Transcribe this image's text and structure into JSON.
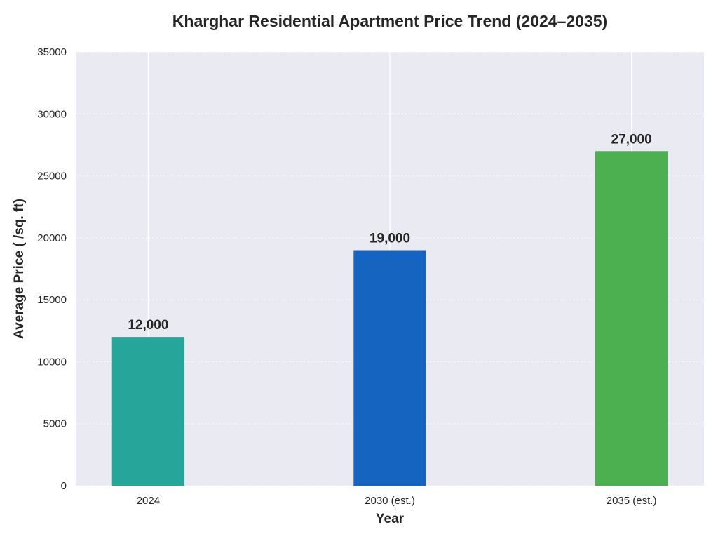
{
  "chart_data": {
    "type": "bar",
    "title": "Kharghar Residential Apartment Price Trend (2024–2035)",
    "xlabel": "Year",
    "ylabel": "Average Price (   /sq. ft)",
    "categories": [
      "2024",
      "2030 (est.)",
      "2035 (est.)"
    ],
    "values": [
      12000,
      19000,
      27000
    ],
    "data_labels": [
      "12,000",
      "19,000",
      "27,000"
    ],
    "bar_colors": [
      "#26a69a",
      "#1565c0",
      "#4caf50"
    ],
    "ylim": [
      0,
      35000
    ],
    "yticks": [
      0,
      5000,
      10000,
      15000,
      20000,
      25000,
      30000,
      35000
    ],
    "grid": true,
    "legend": "none",
    "background_color": "#eaeaf2",
    "grid_color": "#ffffff"
  }
}
